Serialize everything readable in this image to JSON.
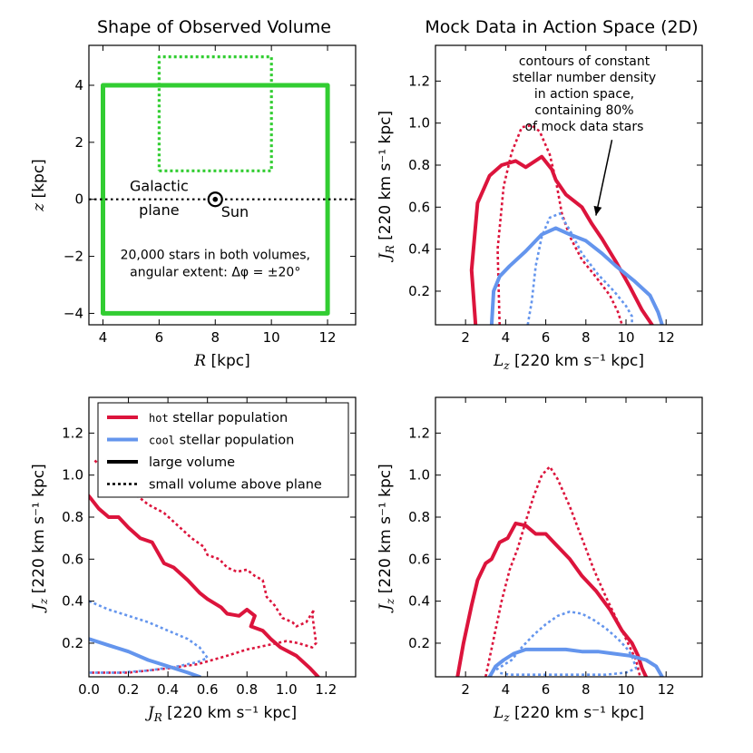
{
  "figure": {
    "title_left": "Shape of Observed Volume",
    "title_right": "Mock Data in Action Space (2D)"
  },
  "colors": {
    "hot": "#dc143c",
    "cool": "#6495ed",
    "volume": "#32cd32",
    "black": "#000000"
  },
  "chart_data": [
    {
      "id": "shape",
      "type": "line",
      "xlabel": "R [kpc]",
      "ylabel": "z [kpc]",
      "xlim": [
        3.5,
        13
      ],
      "ylim": [
        -4.4,
        5.4
      ],
      "xticks": [
        4,
        6,
        8,
        10,
        12
      ],
      "yticks": [
        -4,
        -2,
        0,
        2,
        4
      ],
      "xtick_labels": [
        "4",
        "6",
        "8",
        "10",
        "12"
      ],
      "ytick_labels": [
        "−4",
        "−2",
        "0",
        "2",
        "4"
      ],
      "series": [
        {
          "name": "large volume",
          "style": "solid",
          "color": "volume",
          "x": [
            4,
            12,
            12,
            4,
            4
          ],
          "y": [
            -4,
            -4,
            4,
            4,
            -4
          ]
        },
        {
          "name": "small volume above plane",
          "style": "dotted",
          "color": "volume",
          "x": [
            6,
            10,
            10,
            6,
            6
          ],
          "y": [
            1,
            1,
            5,
            5,
            1
          ]
        },
        {
          "name": "galactic plane",
          "style": "dotted",
          "color": "black",
          "x": [
            3.5,
            13
          ],
          "y": [
            0,
            0
          ]
        }
      ],
      "sun": {
        "x": 8,
        "y": 0
      },
      "annotations": [
        {
          "text": "Galactic",
          "x": 6.0,
          "y": 0.3
        },
        {
          "text": "plane",
          "x": 6.0,
          "y": -0.55
        },
        {
          "text": "Sun",
          "x": 8.7,
          "y": -0.62
        },
        {
          "text": "20,000 stars in both volumes,",
          "x": 8.0,
          "y": -2.1
        },
        {
          "text": "angular extent: Δφ = ±20°",
          "x": 8.0,
          "y": -2.7
        }
      ]
    },
    {
      "id": "jr_lz",
      "type": "line",
      "xlabel": "L_z [220 km s⁻¹ kpc]",
      "ylabel": "J_R [220 km s⁻¹ kpc]",
      "xlim": [
        0.5,
        13.8
      ],
      "ylim": [
        0.04,
        1.37
      ],
      "xticks": [
        2,
        4,
        6,
        8,
        10,
        12
      ],
      "yticks": [
        0.2,
        0.4,
        0.6,
        0.8,
        1.0,
        1.2
      ],
      "xtick_labels": [
        "2",
        "4",
        "6",
        "8",
        "10",
        "12"
      ],
      "ytick_labels": [
        "0.2",
        "0.4",
        "0.6",
        "0.8",
        "1.0",
        "1.2"
      ],
      "series": [
        {
          "name": "hot large",
          "color": "hot",
          "style": "solid",
          "x": [
            2.5,
            2.3,
            2.6,
            3.2,
            3.8,
            4.5,
            5.0,
            5.8,
            6.3,
            6.5,
            7.0,
            7.8,
            8.3,
            8.8,
            9.5,
            10.2,
            10.8,
            11.3
          ],
          "y": [
            0.04,
            0.3,
            0.62,
            0.75,
            0.8,
            0.82,
            0.79,
            0.84,
            0.78,
            0.73,
            0.66,
            0.6,
            0.52,
            0.45,
            0.34,
            0.22,
            0.11,
            0.04
          ]
        },
        {
          "name": "hot small",
          "color": "hot",
          "style": "dotted",
          "x": [
            3.7,
            3.6,
            3.9,
            4.3,
            4.8,
            5.3,
            5.7,
            6.2,
            6.5,
            6.8,
            7.2,
            7.8,
            8.4,
            9.2,
            9.6,
            9.8
          ],
          "y": [
            0.04,
            0.4,
            0.7,
            0.86,
            0.98,
            0.99,
            0.96,
            0.85,
            0.73,
            0.57,
            0.46,
            0.35,
            0.28,
            0.18,
            0.1,
            0.04
          ]
        },
        {
          "name": "cool large",
          "color": "cool",
          "style": "solid",
          "x": [
            3.3,
            3.4,
            3.7,
            4.2,
            5.0,
            5.8,
            6.5,
            7.2,
            8.0,
            8.8,
            9.5,
            10.4,
            11.2,
            11.6,
            11.8
          ],
          "y": [
            0.04,
            0.2,
            0.27,
            0.32,
            0.39,
            0.47,
            0.5,
            0.47,
            0.44,
            0.38,
            0.32,
            0.25,
            0.18,
            0.1,
            0.04
          ]
        },
        {
          "name": "cool small",
          "color": "cool",
          "style": "dotted",
          "x": [
            5.1,
            5.3,
            5.5,
            5.8,
            6.2,
            6.7,
            7.2,
            7.8,
            8.6,
            9.4,
            10.0,
            10.3,
            10.3
          ],
          "y": [
            0.04,
            0.15,
            0.32,
            0.46,
            0.55,
            0.57,
            0.49,
            0.38,
            0.28,
            0.2,
            0.13,
            0.08,
            0.04
          ]
        }
      ],
      "annotation": {
        "lines": [
          "contours of constant",
          "stellar number density",
          "in action space,",
          "containing 80%",
          "of mock data stars"
        ],
        "arrow_from": [
          9.3,
          0.92
        ],
        "arrow_to": [
          8.5,
          0.56
        ]
      }
    },
    {
      "id": "jz_jr",
      "type": "line",
      "xlabel": "J_R [220 km s⁻¹ kpc]",
      "ylabel": "J_z [220 km s⁻¹ kpc]",
      "xlim": [
        0.0,
        1.35
      ],
      "ylim": [
        0.04,
        1.37
      ],
      "xticks": [
        0.0,
        0.2,
        0.4,
        0.6,
        0.8,
        1.0,
        1.2
      ],
      "yticks": [
        0.2,
        0.4,
        0.6,
        0.8,
        1.0,
        1.2
      ],
      "xtick_labels": [
        "0.0",
        "0.2",
        "0.4",
        "0.6",
        "0.8",
        "1.0",
        "1.2"
      ],
      "ytick_labels": [
        "0.2",
        "0.4",
        "0.6",
        "0.8",
        "1.0",
        "1.2"
      ],
      "series": [
        {
          "name": "hot large",
          "color": "hot",
          "style": "solid",
          "x": [
            0.0,
            0.05,
            0.1,
            0.15,
            0.2,
            0.26,
            0.32,
            0.38,
            0.43,
            0.5,
            0.56,
            0.6,
            0.67,
            0.7,
            0.76,
            0.8,
            0.84,
            0.82,
            0.88,
            0.92,
            0.97,
            1.05,
            1.12,
            1.16
          ],
          "y": [
            0.9,
            0.84,
            0.8,
            0.8,
            0.75,
            0.7,
            0.68,
            0.58,
            0.56,
            0.5,
            0.44,
            0.41,
            0.37,
            0.34,
            0.33,
            0.36,
            0.33,
            0.28,
            0.26,
            0.22,
            0.18,
            0.14,
            0.08,
            0.04
          ]
        },
        {
          "name": "hot small",
          "color": "hot",
          "style": "dotted",
          "x": [
            0.03,
            0.08,
            0.15,
            0.22,
            0.3,
            0.38,
            0.45,
            0.52,
            0.58,
            0.6,
            0.66,
            0.7,
            0.75,
            0.8,
            0.84,
            0.88,
            0.9,
            0.94,
            0.98,
            1.03,
            1.05,
            1.1,
            1.14,
            1.13,
            1.15,
            1.13,
            1.06,
            1.0,
            0.9,
            0.8,
            0.7,
            0.55,
            0.4,
            0.2,
            0.0
          ],
          "y": [
            1.07,
            1.02,
            0.97,
            0.92,
            0.86,
            0.82,
            0.76,
            0.7,
            0.66,
            0.62,
            0.6,
            0.56,
            0.54,
            0.55,
            0.52,
            0.5,
            0.42,
            0.38,
            0.32,
            0.3,
            0.28,
            0.3,
            0.36,
            0.34,
            0.2,
            0.18,
            0.2,
            0.21,
            0.19,
            0.17,
            0.14,
            0.1,
            0.08,
            0.06,
            0.06
          ]
        },
        {
          "name": "cool large",
          "color": "cool",
          "style": "solid",
          "x": [
            0.0,
            0.1,
            0.2,
            0.3,
            0.4,
            0.5,
            0.56
          ],
          "y": [
            0.22,
            0.19,
            0.16,
            0.12,
            0.09,
            0.06,
            0.04
          ]
        },
        {
          "name": "cool small",
          "color": "cool",
          "style": "dotted",
          "x": [
            0.0,
            0.1,
            0.2,
            0.3,
            0.4,
            0.5,
            0.56,
            0.6,
            0.55,
            0.45,
            0.3,
            0.15,
            0.0
          ],
          "y": [
            0.4,
            0.36,
            0.33,
            0.3,
            0.26,
            0.22,
            0.18,
            0.13,
            0.11,
            0.09,
            0.07,
            0.06,
            0.06
          ]
        }
      ],
      "legend": {
        "location": "top",
        "entries": [
          {
            "prefix": "hot",
            "label": "stellar population",
            "color": "hot",
            "style": "solid"
          },
          {
            "prefix": "cool",
            "label": "stellar population",
            "color": "cool",
            "style": "solid"
          },
          {
            "prefix": "",
            "label": "large volume",
            "color": "black",
            "style": "solid"
          },
          {
            "prefix": "",
            "label": "small volume above plane",
            "color": "black",
            "style": "dotted"
          }
        ]
      }
    },
    {
      "id": "jz_lz",
      "type": "line",
      "xlabel": "L_z [220 km s⁻¹ kpc]",
      "ylabel": "J_z [220 km s⁻¹ kpc]",
      "xlim": [
        0.5,
        13.8
      ],
      "ylim": [
        0.04,
        1.37
      ],
      "xticks": [
        2,
        4,
        6,
        8,
        10,
        12
      ],
      "yticks": [
        0.2,
        0.4,
        0.6,
        0.8,
        1.0,
        1.2
      ],
      "xtick_labels": [
        "2",
        "4",
        "6",
        "8",
        "10",
        "12"
      ],
      "ytick_labels": [
        "0.2",
        "0.4",
        "0.6",
        "0.8",
        "1.0",
        "1.2"
      ],
      "series": [
        {
          "name": "hot large",
          "color": "hot",
          "style": "solid",
          "x": [
            1.6,
            1.9,
            2.3,
            2.6,
            3.0,
            3.3,
            3.7,
            4.1,
            4.5,
            5.0,
            5.5,
            6.0,
            6.5,
            7.2,
            7.8,
            8.5,
            9.2,
            9.8,
            10.3,
            10.6,
            10.8,
            11.0
          ],
          "y": [
            0.04,
            0.2,
            0.38,
            0.5,
            0.58,
            0.6,
            0.68,
            0.7,
            0.77,
            0.76,
            0.72,
            0.72,
            0.67,
            0.6,
            0.52,
            0.45,
            0.36,
            0.26,
            0.2,
            0.14,
            0.08,
            0.04
          ]
        },
        {
          "name": "hot small",
          "color": "hot",
          "style": "dotted",
          "x": [
            3.0,
            3.4,
            3.8,
            4.2,
            4.6,
            5.0,
            5.4,
            5.8,
            6.2,
            6.6,
            7.2,
            7.8,
            8.4,
            9.0,
            9.6,
            10.1,
            10.5,
            10.7
          ],
          "y": [
            0.04,
            0.22,
            0.4,
            0.55,
            0.65,
            0.78,
            0.9,
            1.0,
            1.04,
            0.98,
            0.85,
            0.7,
            0.55,
            0.42,
            0.3,
            0.2,
            0.12,
            0.04
          ]
        },
        {
          "name": "cool large",
          "color": "cool",
          "style": "solid",
          "x": [
            3.2,
            3.5,
            3.9,
            4.4,
            5.0,
            5.6,
            6.2,
            7.0,
            7.8,
            8.6,
            9.4,
            10.2,
            11.0,
            11.5,
            11.8
          ],
          "y": [
            0.04,
            0.09,
            0.12,
            0.15,
            0.17,
            0.17,
            0.17,
            0.17,
            0.16,
            0.16,
            0.15,
            0.14,
            0.12,
            0.09,
            0.04
          ]
        },
        {
          "name": "cool small",
          "color": "cool",
          "style": "dotted",
          "x": [
            3.3,
            3.8,
            4.3,
            4.8,
            5.4,
            6.0,
            6.6,
            7.2,
            7.8,
            8.4,
            9.0,
            9.6,
            10.0,
            10.3,
            10.5,
            10.0,
            9.0,
            8.0,
            7.0,
            6.0,
            5.0,
            4.2,
            3.6
          ],
          "y": [
            0.06,
            0.09,
            0.12,
            0.18,
            0.24,
            0.29,
            0.33,
            0.35,
            0.34,
            0.31,
            0.27,
            0.22,
            0.18,
            0.14,
            0.08,
            0.06,
            0.05,
            0.05,
            0.05,
            0.05,
            0.05,
            0.05,
            0.06
          ]
        }
      ]
    }
  ]
}
